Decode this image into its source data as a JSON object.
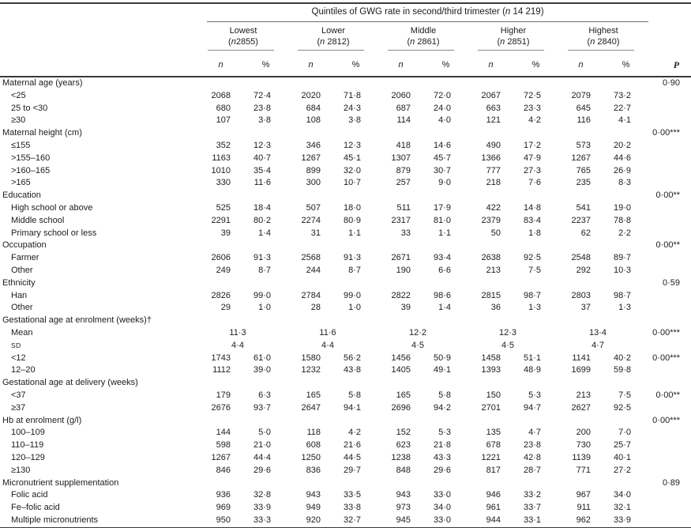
{
  "header": {
    "title": "Quintiles of GWG rate in second/third trimester (n 14 219)",
    "groups": [
      {
        "name": "Lowest",
        "count": "(n2855)"
      },
      {
        "name": "Lower",
        "count": "(n 2812)"
      },
      {
        "name": "Middle",
        "count": "(n 2861)"
      },
      {
        "name": "Higher",
        "count": "(n 2851)"
      },
      {
        "name": "Highest",
        "count": "(n 2840)"
      }
    ],
    "subcol_n": "n",
    "subcol_pct": "%",
    "p_label": "P"
  },
  "rows": [
    {
      "t": "sec",
      "label": "Maternal age (years)",
      "p": "0·90"
    },
    {
      "t": "item",
      "label": "<25",
      "v": [
        "2068",
        "72·4",
        "2020",
        "71·8",
        "2060",
        "72·0",
        "2067",
        "72·5",
        "2079",
        "73·2"
      ]
    },
    {
      "t": "item",
      "label": "25 to <30",
      "v": [
        "680",
        "23·8",
        "684",
        "24·3",
        "687",
        "24·0",
        "663",
        "23·3",
        "645",
        "22·7"
      ]
    },
    {
      "t": "item",
      "label": "≥30",
      "v": [
        "107",
        "3·8",
        "108",
        "3·8",
        "114",
        "4·0",
        "121",
        "4·2",
        "116",
        "4·1"
      ]
    },
    {
      "t": "sec",
      "label": "Maternal height (cm)",
      "p": "0·00***"
    },
    {
      "t": "item",
      "label": "≤155",
      "v": [
        "352",
        "12·3",
        "346",
        "12·3",
        "418",
        "14·6",
        "490",
        "17·2",
        "573",
        "20·2"
      ]
    },
    {
      "t": "item",
      "label": ">155–160",
      "v": [
        "1163",
        "40·7",
        "1267",
        "45·1",
        "1307",
        "45·7",
        "1366",
        "47·9",
        "1267",
        "44·6"
      ]
    },
    {
      "t": "item",
      "label": ">160–165",
      "v": [
        "1010",
        "35·4",
        "899",
        "32·0",
        "879",
        "30·7",
        "777",
        "27·3",
        "765",
        "26·9"
      ]
    },
    {
      "t": "item",
      "label": ">165",
      "v": [
        "330",
        "11·6",
        "300",
        "10·7",
        "257",
        "9·0",
        "218",
        "7·6",
        "235",
        "8·3"
      ]
    },
    {
      "t": "sec",
      "label": "Education",
      "p": "0·00**"
    },
    {
      "t": "item",
      "label": "High school or above",
      "v": [
        "525",
        "18·4",
        "507",
        "18·0",
        "511",
        "17·9",
        "422",
        "14·8",
        "541",
        "19·0"
      ]
    },
    {
      "t": "item",
      "label": "Middle school",
      "v": [
        "2291",
        "80·2",
        "2274",
        "80·9",
        "2317",
        "81·0",
        "2379",
        "83·4",
        "2237",
        "78·8"
      ]
    },
    {
      "t": "item",
      "label": "Primary school or less",
      "v": [
        "39",
        "1·4",
        "31",
        "1·1",
        "33",
        "1·1",
        "50",
        "1·8",
        "62",
        "2·2"
      ]
    },
    {
      "t": "sec",
      "label": "Occupation",
      "p": "0·00**"
    },
    {
      "t": "item",
      "label": "Farmer",
      "v": [
        "2606",
        "91·3",
        "2568",
        "91·3",
        "2671",
        "93·4",
        "2638",
        "92·5",
        "2548",
        "89·7"
      ]
    },
    {
      "t": "item",
      "label": "Other",
      "v": [
        "249",
        "8·7",
        "244",
        "8·7",
        "190",
        "6·6",
        "213",
        "7·5",
        "292",
        "10·3"
      ]
    },
    {
      "t": "sec",
      "label": "Ethnicity",
      "p": "0·59"
    },
    {
      "t": "item",
      "label": "Han",
      "v": [
        "2826",
        "99·0",
        "2784",
        "99·0",
        "2822",
        "98·6",
        "2815",
        "98·7",
        "2803",
        "98·7"
      ]
    },
    {
      "t": "item",
      "label": "Other",
      "v": [
        "29",
        "1·0",
        "28",
        "1·0",
        "39",
        "1·4",
        "36",
        "1·3",
        "37",
        "1·3"
      ]
    },
    {
      "t": "sec",
      "label": "Gestational age at enrolment (weeks)†"
    },
    {
      "t": "span",
      "label": "Mean",
      "v": [
        "11·3",
        "11·6",
        "12·2",
        "12·3",
        "13·4"
      ],
      "p": "0·00***"
    },
    {
      "t": "span",
      "label": "SD",
      "sc": true,
      "v": [
        "4·4",
        "4·4",
        "4·5",
        "4·5",
        "4·7"
      ]
    },
    {
      "t": "item",
      "label": "<12",
      "v": [
        "1743",
        "61·0",
        "1580",
        "56·2",
        "1456",
        "50·9",
        "1458",
        "51·1",
        "1141",
        "40·2"
      ],
      "p": "0·00***"
    },
    {
      "t": "item",
      "label": "12–20",
      "v": [
        "1112",
        "39·0",
        "1232",
        "43·8",
        "1405",
        "49·1",
        "1393",
        "48·9",
        "1699",
        "59·8"
      ]
    },
    {
      "t": "sec",
      "label": "Gestational age at delivery (weeks)"
    },
    {
      "t": "item",
      "label": "<37",
      "v": [
        "179",
        "6·3",
        "165",
        "5·8",
        "165",
        "5·8",
        "150",
        "5·3",
        "213",
        "7·5"
      ],
      "p": "0·00**"
    },
    {
      "t": "item",
      "label": "≥37",
      "v": [
        "2676",
        "93·7",
        "2647",
        "94·1",
        "2696",
        "94·2",
        "2701",
        "94·7",
        "2627",
        "92·5"
      ]
    },
    {
      "t": "sec",
      "label": "Hb at enrolment (g/l)",
      "p": "0·00***"
    },
    {
      "t": "item",
      "label": "100–109",
      "v": [
        "144",
        "5·0",
        "118",
        "4·2",
        "152",
        "5·3",
        "135",
        "4·7",
        "200",
        "7·0"
      ]
    },
    {
      "t": "item",
      "label": "110–119",
      "v": [
        "598",
        "21·0",
        "608",
        "21·6",
        "623",
        "21·8",
        "678",
        "23·8",
        "730",
        "25·7"
      ]
    },
    {
      "t": "item",
      "label": "120–129",
      "v": [
        "1267",
        "44·4",
        "1250",
        "44·5",
        "1238",
        "43·3",
        "1221",
        "42·8",
        "1139",
        "40·1"
      ]
    },
    {
      "t": "item",
      "label": "≥130",
      "v": [
        "846",
        "29·6",
        "836",
        "29·7",
        "848",
        "29·6",
        "817",
        "28·7",
        "771",
        "27·2"
      ]
    },
    {
      "t": "sec",
      "label": "Micronutrient supplementation",
      "p": "0·89"
    },
    {
      "t": "item",
      "label": "Folic acid",
      "v": [
        "936",
        "32·8",
        "943",
        "33·5",
        "943",
        "33·0",
        "946",
        "33·2",
        "967",
        "34·0"
      ]
    },
    {
      "t": "item",
      "label": "Fe–folic acid",
      "v": [
        "969",
        "33·9",
        "949",
        "33·8",
        "973",
        "34·0",
        "961",
        "33·7",
        "911",
        "32·1"
      ]
    },
    {
      "t": "item",
      "label": "Multiple micronutrients",
      "v": [
        "950",
        "33·3",
        "920",
        "32·7",
        "945",
        "33·0",
        "944",
        "33·1",
        "962",
        "33·9"
      ]
    }
  ]
}
